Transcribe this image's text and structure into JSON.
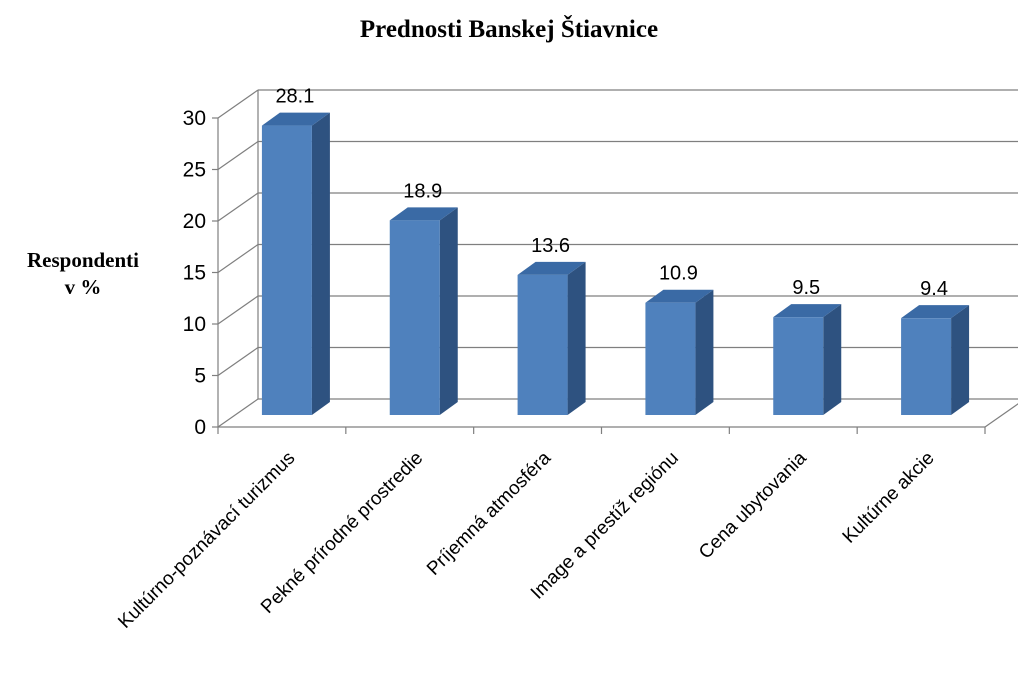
{
  "chart_data": {
    "type": "bar",
    "title": "Prednosti Banskej Štiavnice",
    "ylabel_lines": [
      "Respondenti",
      "v %"
    ],
    "xlabel": "",
    "categories": [
      "Kultúrno-poznávací turizmus",
      "Pekné prírodné prostredie",
      "Príjemná atmosféra",
      "Image a prestíž regiónu",
      "Cena ubytovania",
      "Kultúrne akcie"
    ],
    "values": [
      28.1,
      18.9,
      13.6,
      10.9,
      9.5,
      9.4
    ],
    "value_labels": [
      "28.1",
      "18.9",
      "13.6",
      "10.9",
      "9.5",
      "9.4"
    ],
    "ylim": [
      0,
      30
    ],
    "yticks": [
      0,
      5,
      10,
      15,
      20,
      25,
      30
    ],
    "ytick_labels": [
      "0",
      "5",
      "10",
      "15",
      "20",
      "25",
      "30"
    ],
    "grid": true,
    "style": "3d-column",
    "colors": {
      "bar_front": "#4F81BD",
      "bar_side": "#2E5280",
      "bar_top": "#3A6AA5",
      "grid": "#7F7F7F"
    }
  }
}
